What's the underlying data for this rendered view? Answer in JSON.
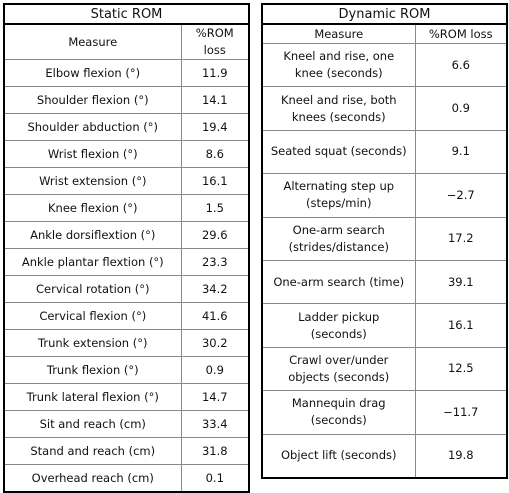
{
  "tables": [
    {
      "title": "Static ROM",
      "header": [
        "Measure",
        "%ROM loss"
      ],
      "rows": [
        [
          "Elbow flexion (°)",
          "11.9"
        ],
        [
          "Shoulder flexion (°)",
          "14.1"
        ],
        [
          "Shoulder abduction (°)",
          "19.4"
        ],
        [
          "Wrist flexion (°)",
          "8.6"
        ],
        [
          "Wrist extension (°)",
          "16.1"
        ],
        [
          "Knee flexion (°)",
          "1.5"
        ],
        [
          "Ankle dorsiflextion (°)",
          "29.6"
        ],
        [
          "Ankle plantar flextion (°)",
          "23.3"
        ],
        [
          "Cervical rotation (°)",
          "34.2"
        ],
        [
          "Cervical flexion (°)",
          "41.6"
        ],
        [
          "Trunk extension (°)",
          "30.2"
        ],
        [
          "Trunk flexion (°)",
          "0.9"
        ],
        [
          "Trunk lateral flexion (°)",
          "14.7"
        ],
        [
          "Sit and reach (cm)",
          "33.4"
        ],
        [
          "Stand and reach (cm)",
          "31.8"
        ],
        [
          "Overhead reach (cm)",
          "0.1"
        ]
      ]
    },
    {
      "title": "Dynamic ROM",
      "header": [
        "Measure",
        "%ROM loss"
      ],
      "rows": [
        [
          "Kneel and rise, one knee (seconds)",
          "6.6"
        ],
        [
          "Kneel and rise, both knees (seconds)",
          "0.9"
        ],
        [
          "Seated squat (seconds)",
          "9.1"
        ],
        [
          "Alternating step up (steps/min)",
          "−2.7"
        ],
        [
          "One-arm search (strides/distance)",
          "17.2"
        ],
        [
          "One-arm search (time)",
          "39.1"
        ],
        [
          "Ladder pickup (seconds)",
          "16.1"
        ],
        [
          "Crawl over/under objects (seconds)",
          "12.5"
        ],
        [
          "Mannequin drag (seconds)",
          "−11.7"
        ],
        [
          "Object lift (seconds)",
          "19.8"
        ]
      ]
    }
  ]
}
